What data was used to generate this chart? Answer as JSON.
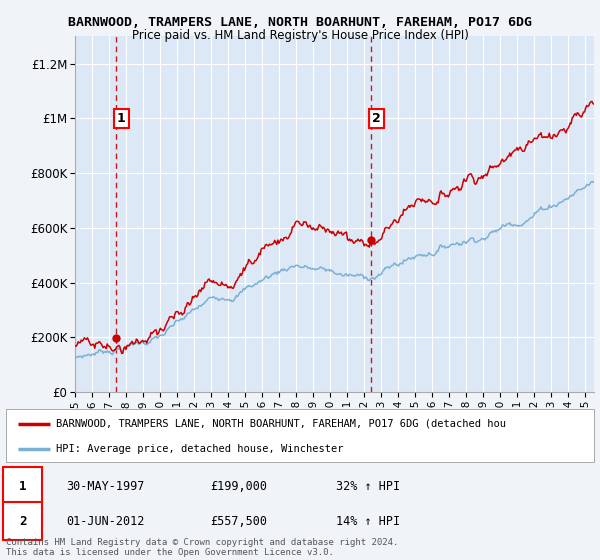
{
  "title": "BARNWOOD, TRAMPERS LANE, NORTH BOARHUNT, FAREHAM, PO17 6DG",
  "subtitle": "Price paid vs. HM Land Registry's House Price Index (HPI)",
  "xlim_start": 1995.0,
  "xlim_end": 2025.5,
  "ylim": [
    0,
    1300000
  ],
  "yticks": [
    0,
    200000,
    400000,
    600000,
    800000,
    1000000,
    1200000
  ],
  "ytick_labels": [
    "£0",
    "£200K",
    "£400K",
    "£600K",
    "£800K",
    "£1M",
    "£1.2M"
  ],
  "sale1_year": 1997.41,
  "sale1_price": 199000,
  "sale1_label": "1",
  "sale2_year": 2012.42,
  "sale2_price": 557500,
  "sale2_label": "2",
  "legend_line1": "BARNWOOD, TRAMPERS LANE, NORTH BOARHUNT, FAREHAM, PO17 6DG (detached hou",
  "legend_line2": "HPI: Average price, detached house, Winchester",
  "table_row1_num": "1",
  "table_row1_date": "30-MAY-1997",
  "table_row1_price": "£199,000",
  "table_row1_hpi": "32% ↑ HPI",
  "table_row2_num": "2",
  "table_row2_date": "01-JUN-2012",
  "table_row2_price": "£557,500",
  "table_row2_hpi": "14% ↑ HPI",
  "footnote": "Contains HM Land Registry data © Crown copyright and database right 2024.\nThis data is licensed under the Open Government Licence v3.0.",
  "bg_color": "#f0f4f8",
  "plot_bg_color": "#dce8f5",
  "grid_color": "white",
  "hpi_color": "#7ab0d4",
  "price_color": "#cc0000",
  "dashed_line_color": "#cc0000"
}
